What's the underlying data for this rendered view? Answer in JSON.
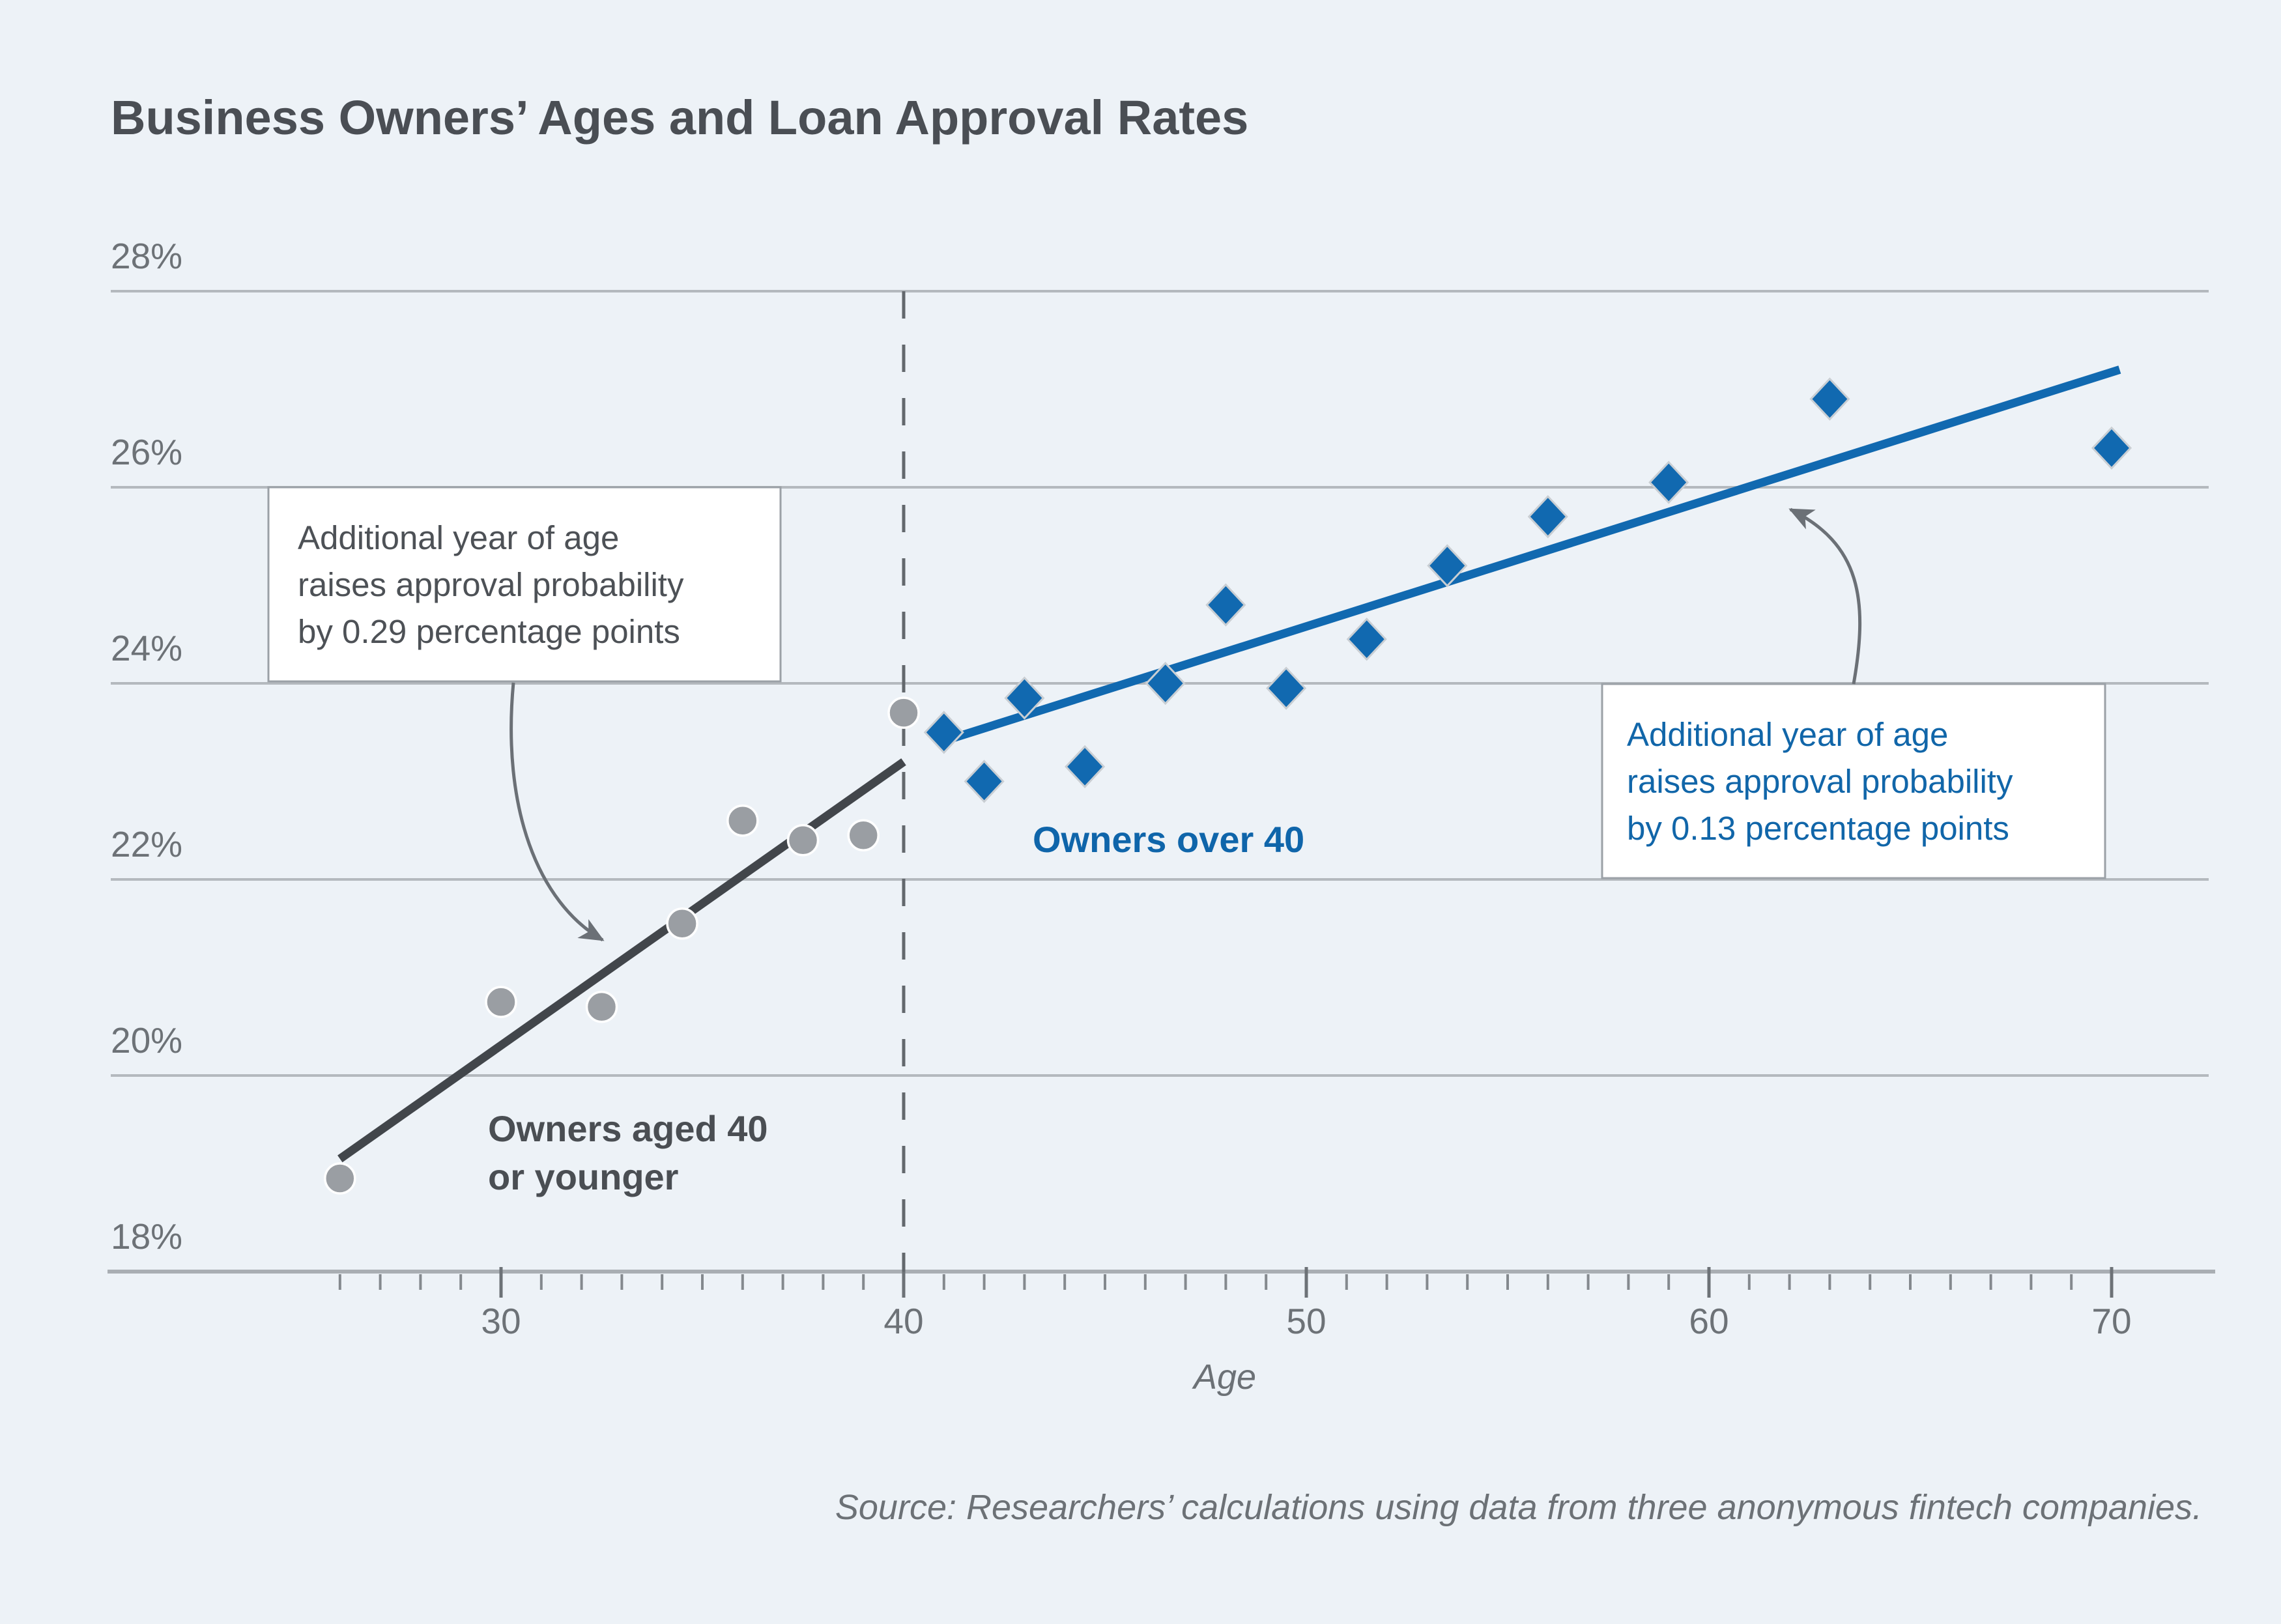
{
  "page": {
    "title": "Business Owners’ Ages and Loan Approval Rates",
    "source_note": "Source: Researchers’ calculations using data from three anonymous fintech companies.",
    "background_color": "#edf2f7"
  },
  "chart_data": {
    "type": "scatter",
    "title": "Business Owners’ Ages and Loan Approval Rates",
    "xlabel": "Age",
    "x_axis": {
      "major_ticks": [
        30,
        40,
        50,
        60,
        70
      ],
      "major_tick_labels": [
        "30",
        "40",
        "50",
        "60",
        "70"
      ],
      "minor_tick_start": 26,
      "minor_tick_end": 70,
      "minor_tick_step": 1
    },
    "y_axis": {
      "range": [
        18,
        28
      ],
      "gridline_values": [
        28,
        26,
        24,
        22,
        20
      ],
      "baseline_value": 18,
      "tick_labels": [
        {
          "value": 28,
          "label": "28%"
        },
        {
          "value": 26,
          "label": "26%"
        },
        {
          "value": 24,
          "label": "24%"
        },
        {
          "value": 22,
          "label": "22%"
        },
        {
          "value": 20,
          "label": "20%"
        },
        {
          "value": 18,
          "label": "18%"
        }
      ]
    },
    "reference_line": {
      "x": 40,
      "style": "dashed",
      "color": "#63686d"
    },
    "series": [
      {
        "name": "Owners aged 40 or younger",
        "marker": "circle",
        "color": "#9a9ea3",
        "trend_color": "#42464b",
        "label_lines": [
          "Owners aged 40",
          "or younger"
        ],
        "points": [
          {
            "age": 26,
            "rate": 18.95
          },
          {
            "age": 30,
            "rate": 20.75
          },
          {
            "age": 32.5,
            "rate": 20.7
          },
          {
            "age": 34.5,
            "rate": 21.55
          },
          {
            "age": 36,
            "rate": 22.6
          },
          {
            "age": 37.5,
            "rate": 22.4
          },
          {
            "age": 39,
            "rate": 22.45
          },
          {
            "age": 40,
            "rate": 23.7
          }
        ],
        "trend_line": {
          "x1": 26,
          "y1": 19.15,
          "x2": 40,
          "y2": 23.2
        },
        "slope_note": "Additional year of age raises approval probability by 0.29 percentage points"
      },
      {
        "name": "Owners over 40",
        "marker": "diamond",
        "color": "#1169b0",
        "trend_color": "#1169b0",
        "label_lines": [
          "Owners over 40"
        ],
        "points": [
          {
            "age": 41,
            "rate": 23.5
          },
          {
            "age": 42,
            "rate": 23.0
          },
          {
            "age": 43,
            "rate": 23.85
          },
          {
            "age": 44.5,
            "rate": 23.15
          },
          {
            "age": 46.5,
            "rate": 24.0
          },
          {
            "age": 48,
            "rate": 24.8
          },
          {
            "age": 49.5,
            "rate": 23.95
          },
          {
            "age": 51.5,
            "rate": 24.45
          },
          {
            "age": 53.5,
            "rate": 25.2
          },
          {
            "age": 56,
            "rate": 25.7
          },
          {
            "age": 59,
            "rate": 26.05
          },
          {
            "age": 63,
            "rate": 26.9
          },
          {
            "age": 70,
            "rate": 26.4
          }
        ],
        "trend_line": {
          "x1": 40.9,
          "y1": 23.4,
          "x2": 70.2,
          "y2": 27.2
        },
        "slope_note": "Additional year of age raises approval probability by 0.13 percentage points"
      }
    ],
    "annotations": [
      {
        "id": "under-40-slope",
        "lines": [
          "Additional year of age",
          "raises approval probability",
          "by 0.29 percentage points"
        ],
        "text_color": "#4d5156"
      },
      {
        "id": "over-40-slope",
        "lines": [
          "Additional year of age",
          "raises approval probability",
          "by 0.13 percentage points"
        ],
        "text_color": "#1166a9"
      }
    ],
    "legend_position": "inline-labels",
    "grid": true
  },
  "colors": {
    "background": "#edf2f7",
    "gridline": "#b4b9be",
    "axis_line": "#a9aeb3",
    "minor_tick": "#84898e",
    "major_tick": "#6d7277",
    "title_text": "#4a4e54",
    "muted_text": "#6c7176",
    "arrow": "#6b7076",
    "annotation_border": "#9ba1a7",
    "diamond_outline": "#c9ced3",
    "dot_outline": "#ffffff"
  }
}
